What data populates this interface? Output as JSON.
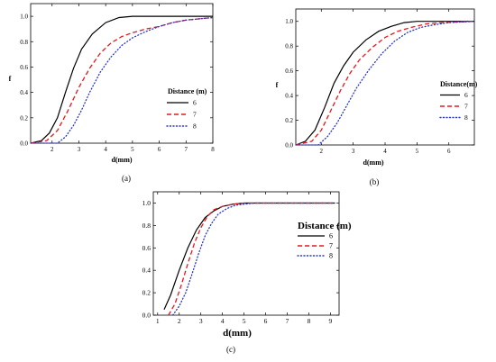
{
  "chart_data": [
    {
      "type": "line",
      "panel_label": "(a)",
      "ylabel": "f",
      "xlabel": "d(mm)",
      "xlim": [
        1.2,
        8
      ],
      "ylim": [
        0,
        1.1
      ],
      "xticks": [
        "2",
        "3",
        "4",
        "5",
        "6",
        "7",
        "8"
      ],
      "yticks": [
        "0.0",
        "0.2",
        "0.4",
        "0.6",
        "0.8",
        "1.0"
      ],
      "legend_title": "Distance (m)",
      "legend_position": "center-right",
      "series": [
        {
          "name": "6",
          "style": "solid",
          "color": "#000000",
          "x": [
            1.2,
            1.6,
            1.9,
            2.2,
            2.5,
            2.8,
            3.1,
            3.5,
            4.0,
            4.5,
            5.0,
            6.0,
            8.0
          ],
          "y": [
            0.0,
            0.02,
            0.08,
            0.2,
            0.4,
            0.59,
            0.74,
            0.86,
            0.95,
            0.99,
            1.0,
            1.0,
            1.0
          ]
        },
        {
          "name": "7",
          "style": "dashed",
          "color": "#e8161b",
          "x": [
            1.2,
            1.8,
            2.2,
            2.6,
            3.0,
            3.4,
            3.8,
            4.2,
            4.6,
            5.0,
            5.5,
            6.0,
            6.5,
            7.0,
            8.0
          ],
          "y": [
            0.0,
            0.02,
            0.1,
            0.26,
            0.44,
            0.59,
            0.71,
            0.79,
            0.84,
            0.87,
            0.9,
            0.92,
            0.95,
            0.97,
            0.99
          ]
        },
        {
          "name": "8",
          "style": "dotted",
          "color": "#2a36c9",
          "x": [
            1.2,
            2.2,
            2.5,
            2.8,
            3.1,
            3.4,
            3.8,
            4.2,
            4.6,
            5.0,
            5.5,
            6.0,
            6.5,
            7.0,
            8.0
          ],
          "y": [
            0.0,
            0.0,
            0.05,
            0.14,
            0.26,
            0.4,
            0.56,
            0.68,
            0.77,
            0.83,
            0.88,
            0.92,
            0.95,
            0.97,
            0.99
          ]
        }
      ]
    },
    {
      "type": "line",
      "panel_label": "(b)",
      "ylabel": "f",
      "xlabel": "d(mm)",
      "xlim": [
        1.2,
        6.8
      ],
      "ylim": [
        0,
        1.1
      ],
      "xticks": [
        "2",
        "3",
        "4",
        "5",
        "6"
      ],
      "yticks": [
        "0.0",
        "0.2",
        "0.4",
        "0.6",
        "0.8",
        "1.0"
      ],
      "legend_title": "Distance(m)",
      "legend_position": "center-right",
      "series": [
        {
          "name": "6",
          "style": "solid",
          "color": "#000000",
          "x": [
            1.2,
            1.5,
            1.8,
            2.1,
            2.4,
            2.7,
            3.0,
            3.4,
            3.8,
            4.2,
            4.6,
            5.0,
            5.5,
            6.8
          ],
          "y": [
            0.0,
            0.03,
            0.12,
            0.3,
            0.5,
            0.64,
            0.75,
            0.85,
            0.92,
            0.96,
            0.99,
            1.0,
            1.0,
            1.0
          ]
        },
        {
          "name": "7",
          "style": "dashed",
          "color": "#e8161b",
          "x": [
            1.2,
            1.7,
            2.0,
            2.3,
            2.6,
            2.9,
            3.2,
            3.6,
            4.0,
            4.4,
            4.8,
            5.3,
            5.8,
            6.8
          ],
          "y": [
            0.0,
            0.03,
            0.12,
            0.28,
            0.44,
            0.58,
            0.69,
            0.79,
            0.87,
            0.92,
            0.95,
            0.98,
            0.99,
            1.0
          ]
        },
        {
          "name": "8",
          "style": "dotted",
          "color": "#2a36c9",
          "x": [
            1.2,
            1.9,
            2.2,
            2.5,
            2.8,
            3.1,
            3.5,
            3.9,
            4.3,
            4.7,
            5.1,
            5.5,
            6.0,
            6.8
          ],
          "y": [
            0.0,
            0.0,
            0.07,
            0.18,
            0.32,
            0.46,
            0.61,
            0.74,
            0.84,
            0.91,
            0.95,
            0.97,
            0.99,
            1.0
          ]
        }
      ]
    },
    {
      "type": "line",
      "panel_label": "(c)",
      "ylabel": "",
      "xlabel": "d(mm)",
      "xlim": [
        0.8,
        9.4
      ],
      "ylim": [
        0,
        1.1
      ],
      "xticks": [
        "1",
        "2",
        "3",
        "4",
        "5",
        "6",
        "7",
        "8",
        "9"
      ],
      "yticks": [
        "0.0",
        "0.2",
        "0.4",
        "0.6",
        "0.8",
        "1.0"
      ],
      "legend_title": "Distance (m)",
      "legend_position": "right",
      "series": [
        {
          "name": "6",
          "style": "solid",
          "color": "#000000",
          "x": [
            1.3,
            1.6,
            2.0,
            2.4,
            2.8,
            3.2,
            3.6,
            4.0,
            4.5,
            5.0,
            5.5,
            6.0,
            9.2
          ],
          "y": [
            0.05,
            0.18,
            0.4,
            0.6,
            0.76,
            0.87,
            0.93,
            0.97,
            0.99,
            1.0,
            1.0,
            1.0,
            1.0
          ]
        },
        {
          "name": "7",
          "style": "dashed",
          "color": "#e8161b",
          "x": [
            1.5,
            1.8,
            2.1,
            2.4,
            2.7,
            3.0,
            3.3,
            3.6,
            4.0,
            4.5,
            5.0,
            5.5,
            9.2
          ],
          "y": [
            0.0,
            0.1,
            0.27,
            0.46,
            0.64,
            0.78,
            0.88,
            0.94,
            0.97,
            0.99,
            1.0,
            1.0,
            1.0
          ]
        },
        {
          "name": "8",
          "style": "dotted",
          "color": "#2a36c9",
          "x": [
            1.7,
            2.0,
            2.3,
            2.6,
            2.9,
            3.2,
            3.5,
            3.8,
            4.2,
            4.6,
            5.0,
            5.5,
            9.2
          ],
          "y": [
            0.0,
            0.08,
            0.2,
            0.37,
            0.55,
            0.71,
            0.82,
            0.9,
            0.95,
            0.98,
            0.99,
            1.0,
            1.0
          ]
        }
      ]
    }
  ]
}
